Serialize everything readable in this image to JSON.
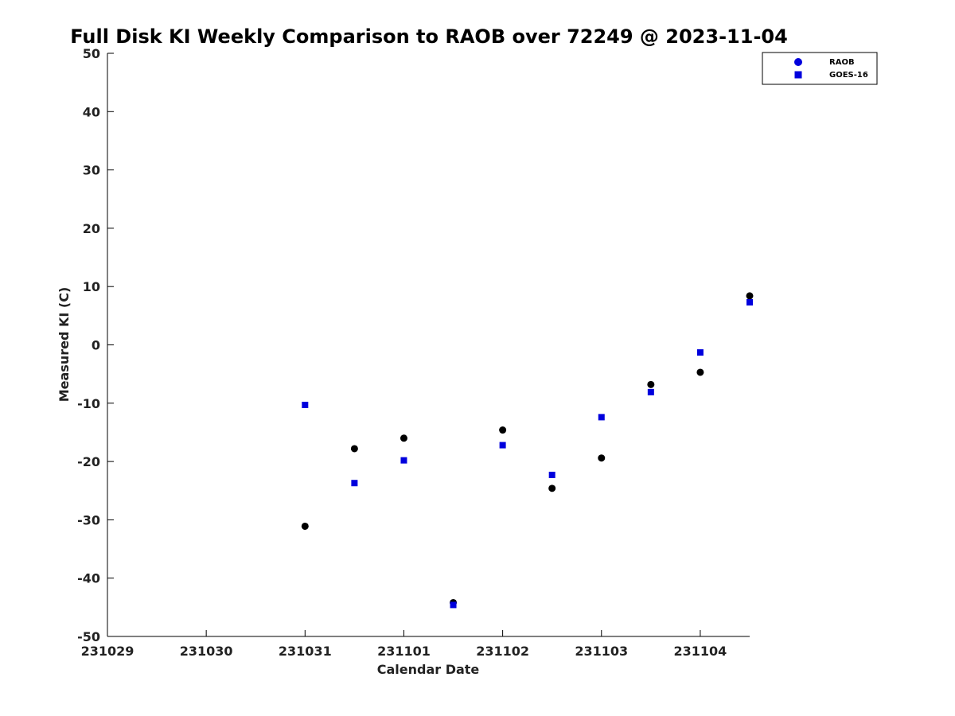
{
  "chart_data": {
    "type": "scatter",
    "title": "Full Disk KI Weekly Comparison to RAOB over 72249 @ 2023-11-04",
    "xlabel": "Calendar Date",
    "ylabel": "Measured KI (C)",
    "x_tick_labels": [
      "231029",
      "231030",
      "231031",
      "231101",
      "231102",
      "231103",
      "231104"
    ],
    "x_tick_values": [
      0,
      1,
      2,
      3,
      4,
      5,
      6
    ],
    "xlim": [
      0,
      6.5
    ],
    "ylim": [
      -50,
      50
    ],
    "y_ticks": [
      50,
      40,
      30,
      20,
      10,
      0,
      -10,
      -20,
      -30,
      -40,
      -50
    ],
    "grid": false,
    "legend_position": "top-right",
    "series": [
      {
        "name": "RAOB",
        "marker": "circle",
        "color": "#000000",
        "legend_color": "#0000dd",
        "points": [
          {
            "x": 2.0,
            "y": -31.1
          },
          {
            "x": 2.5,
            "y": -17.8
          },
          {
            "x": 3.0,
            "y": -16.0
          },
          {
            "x": 3.5,
            "y": -44.2
          },
          {
            "x": 4.0,
            "y": -14.6
          },
          {
            "x": 4.5,
            "y": -24.6
          },
          {
            "x": 5.0,
            "y": -19.4
          },
          {
            "x": 5.5,
            "y": -6.8
          },
          {
            "x": 6.0,
            "y": -4.7
          },
          {
            "x": 6.5,
            "y": 8.4
          }
        ]
      },
      {
        "name": "GOES-16",
        "marker": "square",
        "color": "#0000dd",
        "legend_color": "#0000dd",
        "points": [
          {
            "x": 2.0,
            "y": -10.3
          },
          {
            "x": 2.5,
            "y": -23.7
          },
          {
            "x": 3.0,
            "y": -19.8
          },
          {
            "x": 3.5,
            "y": -44.6
          },
          {
            "x": 4.0,
            "y": -17.2
          },
          {
            "x": 4.5,
            "y": -22.3
          },
          {
            "x": 5.0,
            "y": -12.4
          },
          {
            "x": 5.5,
            "y": -8.1
          },
          {
            "x": 6.0,
            "y": -1.3
          },
          {
            "x": 6.5,
            "y": 7.3
          }
        ]
      }
    ]
  }
}
